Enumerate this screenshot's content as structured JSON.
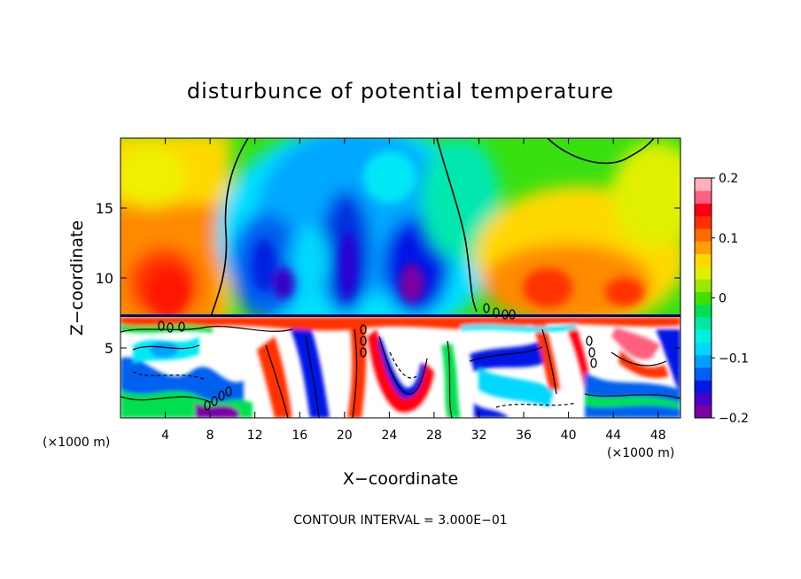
{
  "chart_data": {
    "type": "heatmap",
    "title": "disturbunce of potential temperature",
    "xlabel": "X−coordinate",
    "ylabel": "Z−coordinate",
    "x_unit_left": "(×1000 m)",
    "x_unit_right": "(×1000 m)",
    "footer": "CONTOUR INTERVAL = 3.000E−01",
    "xlim": [
      0,
      50
    ],
    "ylim": [
      0,
      20
    ],
    "xticks": [
      4,
      8,
      12,
      16,
      20,
      24,
      28,
      32,
      36,
      40,
      44,
      48
    ],
    "yticks": [
      5,
      10,
      15
    ],
    "colorbar": {
      "range": [
        -0.2,
        0.2
      ],
      "tick_values": [
        0.2,
        0.1,
        0,
        -0.1,
        -0.2
      ],
      "tick_labels": [
        "0.2",
        "0.1",
        "0",
        "−0.1",
        "−0.2"
      ],
      "colors": [
        "#7a00a6",
        "#4a00c8",
        "#0018e6",
        "#0060f0",
        "#00a0ff",
        "#00d8ff",
        "#00f0e0",
        "#00e8a0",
        "#00e050",
        "#40e000",
        "#9ae800",
        "#e0f000",
        "#ffd800",
        "#ffa000",
        "#ff6a00",
        "#ff3000",
        "#ff0010",
        "#ff6080",
        "#ffb0b8"
      ]
    },
    "inversion_level": 7.3,
    "upper_layer_note": "smooth field above z≈7.3 km; strongly mixed field with contours below",
    "grid": false,
    "legend": "colorbar-right"
  },
  "colors": {
    "background": "#ffffff",
    "axis": "#000000",
    "contour": "#000000"
  }
}
